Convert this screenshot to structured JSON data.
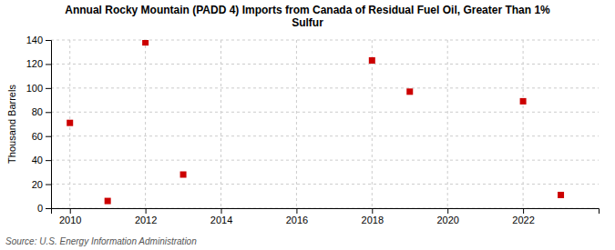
{
  "chart_data": {
    "type": "scatter",
    "title": "Annual Rocky Mountain (PADD 4) Imports from Canada of Residual Fuel Oil, Greater Than 1%\nSulfur",
    "ylabel": "Thousand Barrels",
    "source": "Source: U.S. Energy Information Administration",
    "x": [
      2010,
      2011,
      2012,
      2013,
      2018,
      2019,
      2022,
      2023
    ],
    "values": [
      71,
      6,
      138,
      28,
      123,
      97,
      89,
      11
    ],
    "color": "#cc0000",
    "marker": "square",
    "xlim": [
      2009.5,
      2024.0
    ],
    "xticks": [
      2010,
      2012,
      2014,
      2016,
      2018,
      2020,
      2022
    ],
    "ylim": [
      0,
      140
    ],
    "yticks": [
      0,
      20,
      40,
      60,
      80,
      100,
      120,
      140
    ],
    "grid": true
  }
}
